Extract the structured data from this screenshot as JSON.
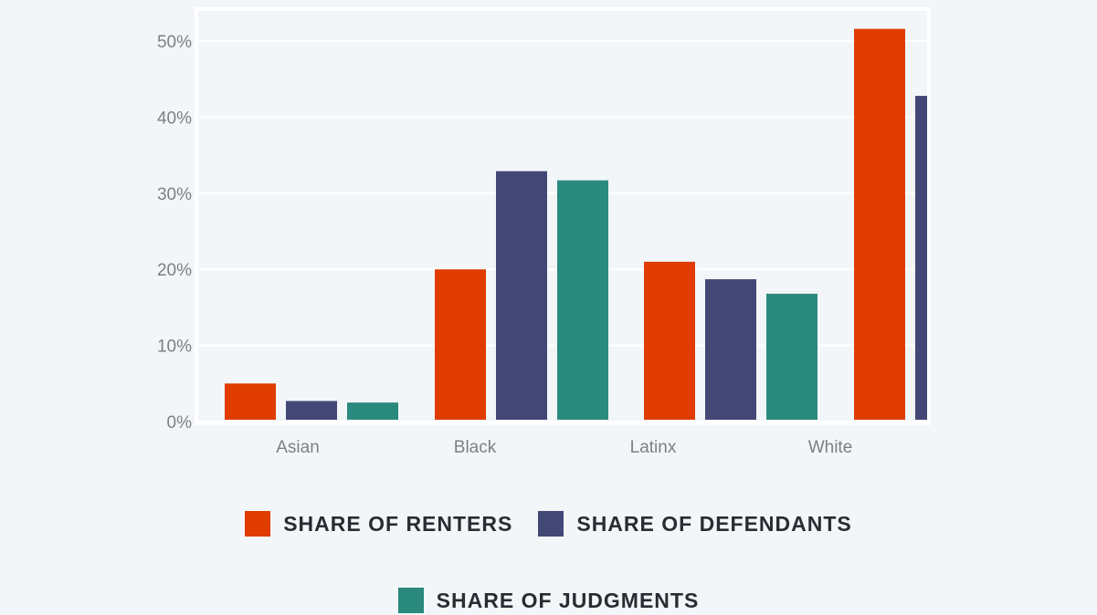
{
  "chart_data": {
    "type": "bar",
    "categories": [
      "Asian",
      "Black",
      "Latinx",
      "White"
    ],
    "series": [
      {
        "name": "SHARE OF RENTERS",
        "color": "#e03c00",
        "values": [
          5,
          20,
          21,
          51.6
        ]
      },
      {
        "name": "SHARE OF DEFENDANTS",
        "color": "#434775",
        "values": [
          2.7,
          32.9,
          18.7,
          42.8
        ]
      },
      {
        "name": "SHARE OF JUDGMENTS",
        "color": "#2a8a7e",
        "values": [
          2.5,
          31.7,
          16.8,
          0
        ]
      }
    ],
    "y_ticks": [
      "0%",
      "10%",
      "20%",
      "30%",
      "40%",
      "50%"
    ],
    "ylim": [
      0,
      50
    ],
    "grid": true,
    "legend_position": "bottom"
  }
}
